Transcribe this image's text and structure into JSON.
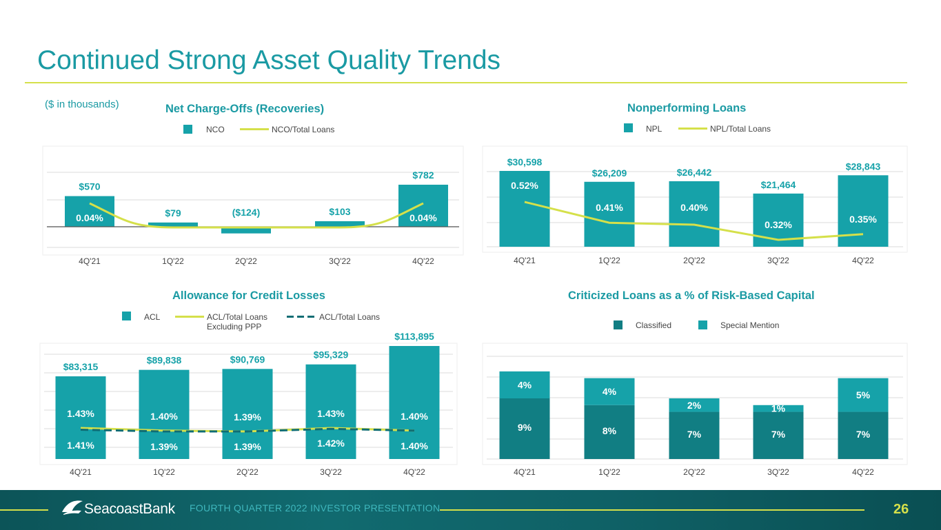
{
  "page": {
    "title": "Continued Strong Asset Quality Trends",
    "note": "($ in thousands)",
    "colors": {
      "teal": "#16a2a9",
      "lime": "#d5e04a",
      "dark_teal": "#117e83",
      "title": "#1a9aa3"
    }
  },
  "footer": {
    "brand": "SeacoastBank",
    "tagline": "FOURTH QUARTER 2022 INVESTOR PRESENTATION",
    "page_number": "26"
  },
  "chart_data": [
    {
      "id": "nco",
      "type": "bar",
      "title": "Net Charge-Offs (Recoveries)",
      "legend": [
        "NCO",
        "NCO/Total Loans"
      ],
      "categories": [
        "4Q'21",
        "1Q'22",
        "2Q'22",
        "3Q'22",
        "4Q'22"
      ],
      "series": [
        {
          "name": "NCO",
          "values": [
            570,
            79,
            -124,
            103,
            782
          ],
          "labels": [
            "$570",
            "$79",
            "($124)",
            "$103",
            "$782"
          ]
        },
        {
          "name": "NCO/Total Loans",
          "type": "line",
          "values": [
            0.04,
            0.0,
            0.0,
            0.0,
            0.04
          ],
          "labels": [
            "0.04%",
            "",
            "",
            "",
            "0.04%"
          ]
        }
      ],
      "ylim": [
        -250,
        1050
      ],
      "line_ylim": [
        -0.02,
        0.08
      ]
    },
    {
      "id": "npl",
      "type": "bar",
      "title": "Nonperforming Loans",
      "legend": [
        "NPL",
        "NPL/Total Loans"
      ],
      "categories": [
        "4Q'21",
        "1Q'22",
        "2Q'22",
        "3Q'22",
        "4Q'22"
      ],
      "series": [
        {
          "name": "NPL",
          "values": [
            30598,
            26209,
            26442,
            21464,
            28843
          ],
          "labels": [
            "$30,598",
            "$26,209",
            "$26,442",
            "$21,464",
            "$28,843"
          ]
        },
        {
          "name": "NPL/Total Loans",
          "type": "line",
          "values": [
            0.52,
            0.41,
            0.4,
            0.32,
            0.35
          ],
          "labels": [
            "0.52%",
            "0.41%",
            "0.40%",
            "0.32%",
            "0.35%"
          ]
        }
      ],
      "ylim": [
        0,
        38000
      ],
      "line_ylim": [
        0.2,
        0.72
      ]
    },
    {
      "id": "acl",
      "type": "bar",
      "title": "Allowance for Credit Losses",
      "legend": [
        "ACL",
        "ACL/Total Loans Excluding PPP",
        "ACL/Total Loans"
      ],
      "categories": [
        "4Q'21",
        "1Q'22",
        "2Q'22",
        "3Q'22",
        "4Q'22"
      ],
      "series": [
        {
          "name": "ACL",
          "values": [
            83315,
            89838,
            90769,
            95329,
            113895
          ],
          "labels": [
            "$83,315",
            "$89,838",
            "$90,769",
            "$95,329",
            "$113,895"
          ]
        },
        {
          "name": "ACL/Total Loans Excluding PPP",
          "type": "line",
          "values": [
            1.43,
            1.4,
            1.39,
            1.43,
            1.4
          ],
          "labels": [
            "1.43%",
            "1.40%",
            "1.39%",
            "1.43%",
            "1.40%"
          ]
        },
        {
          "name": "ACL/Total Loans",
          "type": "line",
          "style": "dashed",
          "values": [
            1.41,
            1.39,
            1.39,
            1.42,
            1.4
          ],
          "labels": [
            "1.41%",
            "1.39%",
            "1.39%",
            "1.42%",
            "1.40%"
          ]
        }
      ],
      "ylim": [
        0,
        122000
      ],
      "line_ylim": [
        0.9,
        1.9
      ]
    },
    {
      "id": "criticized",
      "type": "bar",
      "stacked": true,
      "title": "Criticized Loans as a % of Risk-Based Capital",
      "legend": [
        "Classified",
        "Special Mention"
      ],
      "categories": [
        "4Q'21",
        "1Q'22",
        "2Q'22",
        "3Q'22",
        "4Q'22"
      ],
      "series": [
        {
          "name": "Classified",
          "values": [
            9,
            8,
            7,
            7,
            7
          ],
          "labels": [
            "9%",
            "8%",
            "7%",
            "7%",
            "7%"
          ]
        },
        {
          "name": "Special Mention",
          "values": [
            4,
            4,
            2,
            1,
            5
          ],
          "labels": [
            "4%",
            "4%",
            "2%",
            "1%",
            "5%"
          ]
        }
      ],
      "ylim": [
        0,
        16
      ]
    }
  ]
}
